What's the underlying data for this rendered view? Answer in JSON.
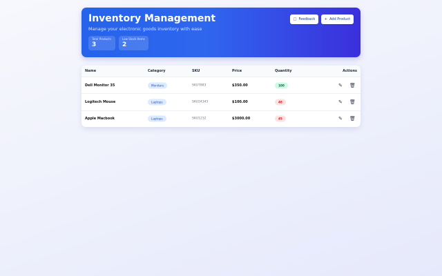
{
  "header": {
    "title": "Inventory Management",
    "subtitle": "Manage your electronic goods inventory with ease",
    "stats": [
      {
        "label": "Total Products",
        "value": "3"
      },
      {
        "label": "Low Stock Items",
        "value": "2"
      }
    ],
    "feedback_label": "Feedback",
    "add_label": "Add Product"
  },
  "table": {
    "columns": [
      "Name",
      "Category",
      "SKU",
      "Price",
      "Quantity",
      "Actions"
    ],
    "rows": [
      {
        "name": "Dell Monitor 35",
        "category": "Monitors",
        "sku": "SKU7883",
        "price": "$350.00",
        "quantity": "100",
        "stock": "ok"
      },
      {
        "name": "Logitech Mouse",
        "category": "Laptops",
        "sku": "SKU24343",
        "price": "$100.00",
        "quantity": "48",
        "stock": "low"
      },
      {
        "name": "Apple Macbook",
        "category": "Laptops",
        "sku": "SKU1232",
        "price": "$3000.00",
        "quantity": "45",
        "stock": "low"
      }
    ]
  },
  "colors": {
    "accent": "#2563eb",
    "low": "#fee2e2",
    "ok": "#d1fae5"
  }
}
